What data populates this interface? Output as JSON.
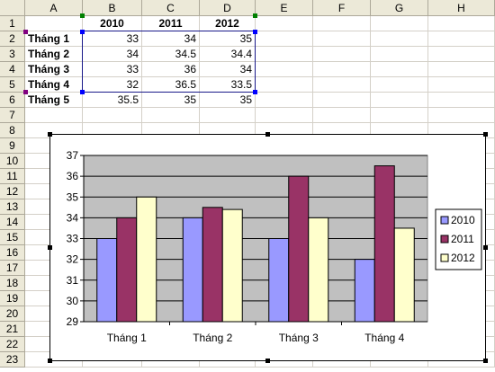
{
  "sheet": {
    "columns": [
      "A",
      "B",
      "C",
      "D",
      "E",
      "F",
      "G",
      "H"
    ],
    "rows": [
      "1",
      "2",
      "3",
      "4",
      "5",
      "6",
      "7",
      "8",
      "9",
      "10",
      "11",
      "12",
      "13",
      "14",
      "15",
      "16",
      "17",
      "18",
      "19",
      "20",
      "21",
      "22",
      "23"
    ],
    "table": {
      "headers": [
        "",
        "2010",
        "2011",
        "2012"
      ],
      "data": [
        [
          "Tháng 1",
          "33",
          "34",
          "35"
        ],
        [
          "Tháng 2",
          "34",
          "34.5",
          "34.4"
        ],
        [
          "Tháng 3",
          "33",
          "36",
          "34"
        ],
        [
          "Tháng 4",
          "32",
          "36.5",
          "33.5"
        ],
        [
          "Tháng 5",
          "35.5",
          "35",
          "35"
        ]
      ]
    }
  },
  "chart_data": {
    "type": "bar",
    "categories": [
      "Tháng 1",
      "Tháng 2",
      "Tháng 3",
      "Tháng 4"
    ],
    "series": [
      {
        "name": "2010",
        "values": [
          33,
          34,
          33,
          32
        ],
        "color": "#9999ff"
      },
      {
        "name": "2011",
        "values": [
          34,
          34.5,
          36,
          36.5
        ],
        "color": "#993366"
      },
      {
        "name": "2012",
        "values": [
          35,
          34.4,
          34,
          33.5
        ],
        "color": "#ffffcc"
      }
    ],
    "ylim": [
      29,
      37
    ],
    "yticks": [
      29,
      30,
      31,
      32,
      33,
      34,
      35,
      36,
      37
    ],
    "grid": true,
    "plot_background": "#c0c0c0",
    "legend": "right"
  }
}
